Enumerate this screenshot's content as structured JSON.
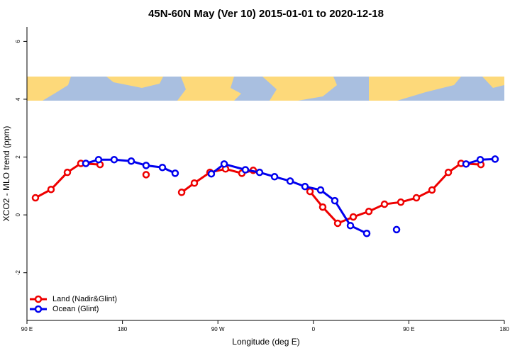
{
  "chart_data": {
    "type": "line",
    "title": "45N-60N May (Ver 10)   2015-01-01 to 2020-12-18",
    "xlabel": "Longitude (deg E)",
    "ylabel": "XCO2 - MLO trend (ppm)",
    "xlim": [
      90,
      540
    ],
    "xticks": [
      {
        "value": 90,
        "label": "90 E"
      },
      {
        "value": 180,
        "label": "180"
      },
      {
        "value": 270,
        "label": "90 W"
      },
      {
        "value": 360,
        "label": "0"
      },
      {
        "value": 450,
        "label": "90 E"
      },
      {
        "value": 540,
        "label": "180"
      }
    ],
    "ylim": [
      -3.65,
      6.5
    ],
    "yticks": [
      -2,
      0,
      2,
      4,
      6
    ],
    "legend": "bottomleft",
    "series": [
      {
        "name": "Land (Nadir&Glint)",
        "color": "#ee0000",
        "x": [
          98.0,
          112.7,
          128.1,
          140.8,
          158.9,
          null,
          202.3,
          null,
          235.8,
          247.8,
          262.5,
          277.2,
          292.6,
          303.3,
          null,
          356.8,
          368.8,
          382.9,
          397.6,
          412.3,
          427.0,
          442.4,
          457.1,
          471.8,
          487.2,
          499.2,
          517.9
        ],
        "values": [
          0.59,
          0.88,
          1.47,
          1.78,
          1.74,
          null,
          1.39,
          null,
          0.78,
          1.1,
          1.47,
          1.59,
          1.44,
          1.54,
          null,
          0.81,
          0.27,
          -0.29,
          -0.07,
          0.12,
          0.37,
          0.44,
          0.59,
          0.86,
          1.47,
          1.78,
          1.74
        ]
      },
      {
        "name": "Ocean (Glint)",
        "color": "#0000ee",
        "x": [
          145.5,
          157.5,
          172.2,
          188.3,
          202.3,
          217.7,
          229.7,
          null,
          263.8,
          275.9,
          295.9,
          309.3,
          323.4,
          338.1,
          352.1,
          366.8,
          380.2,
          394.9,
          410.3,
          null,
          438.4,
          null,
          503.9,
          517.3,
          531.3
        ],
        "values": [
          1.78,
          1.91,
          1.91,
          1.86,
          1.71,
          1.64,
          1.44,
          null,
          1.42,
          1.76,
          1.56,
          1.47,
          1.32,
          1.17,
          0.98,
          0.86,
          0.49,
          -0.37,
          -0.64,
          null,
          -0.51,
          null,
          1.76,
          1.91,
          1.93
        ]
      }
    ]
  }
}
